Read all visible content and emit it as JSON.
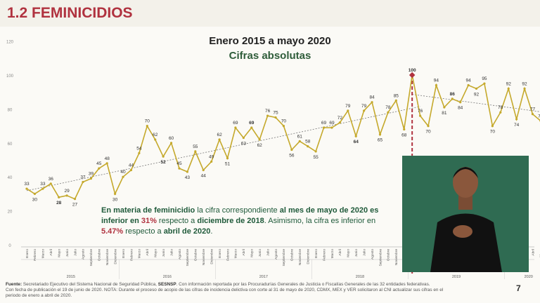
{
  "header": {
    "title": "1.2 FEMINICIDIOS"
  },
  "chart_data": {
    "type": "line",
    "title": "Enero 2015 a mayo 2020",
    "subtitle": "Cifras absolutas",
    "ylim": [
      0,
      120
    ],
    "yticks": [
      0,
      20,
      40,
      60,
      80,
      100,
      120
    ],
    "month_labels": [
      "Enero",
      "Febrero",
      "Marzo",
      "Abril",
      "Mayo",
      "Junio",
      "Julio",
      "Agosto",
      "Septiembre",
      "Octubre",
      "Noviembre",
      "Diciembre"
    ],
    "year_labels": [
      "2015",
      "2016",
      "2017",
      "2018",
      "2019",
      "2020"
    ],
    "series": [
      {
        "values": [
          33,
          30,
          33,
          36,
          28,
          29,
          27,
          37,
          39,
          45,
          48,
          30,
          40,
          44,
          54,
          70,
          62,
          52,
          60,
          45,
          43,
          55,
          44,
          49,
          62,
          51,
          69,
          63,
          69,
          62,
          76,
          75,
          70,
          56,
          61,
          58,
          55,
          69,
          69,
          72,
          79,
          64,
          79,
          84,
          65,
          78,
          85,
          68,
          100,
          76,
          70,
          94,
          81,
          86,
          84,
          94,
          92,
          95,
          70,
          78,
          92,
          74,
          92,
          77,
          73,
          69
        ]
      }
    ],
    "bold_points": [
      28,
      52,
      69,
      64,
      86,
      100,
      69
    ],
    "grid": false,
    "trendlines": [
      "lineal 2015-2018",
      "lineal 2019-2020"
    ]
  },
  "annotation": {
    "p1": "En materia de feminicidio",
    "p2": " la cifra correspondiente ",
    "p3": "al mes de mayo de 2020 es inferior en ",
    "p4": "31%",
    "p5": " respecto a ",
    "p6": "diciembre de 2018",
    "p7": ". Asimismo, la cifra es inferior en ",
    "p8": "5.47%",
    "p9": " respecto a ",
    "p10": "abril de 2020",
    "p11": "."
  },
  "footer": {
    "source_label": "Fuente:",
    "source_text": " Secretariado Ejecutivo del Sistema Nacional de Seguridad Pública, ",
    "sesnsp": "SESNSP",
    "source_rest": ". Con información reportada por las Procuradurías Generales de Justicia o Fiscalías Generales de las 32 entidades federativas.",
    "line2": "Con fecha de publicación el 19 de junio de 2020. NOTA: Durante el proceso de acopio de las cifras de incidencia delictiva con corte al 31 de mayo de 2020, CDMX, MEX y VER solicitaron al CNI actualizar sus cifras en el",
    "line3": "periodo de enero a abril de 2020.",
    "page": "7"
  },
  "colors": {
    "accent": "#b0323f",
    "series": "#c5a92c",
    "text_green": "#1f5a3a",
    "interpreter_bg": "#2f6b52"
  }
}
